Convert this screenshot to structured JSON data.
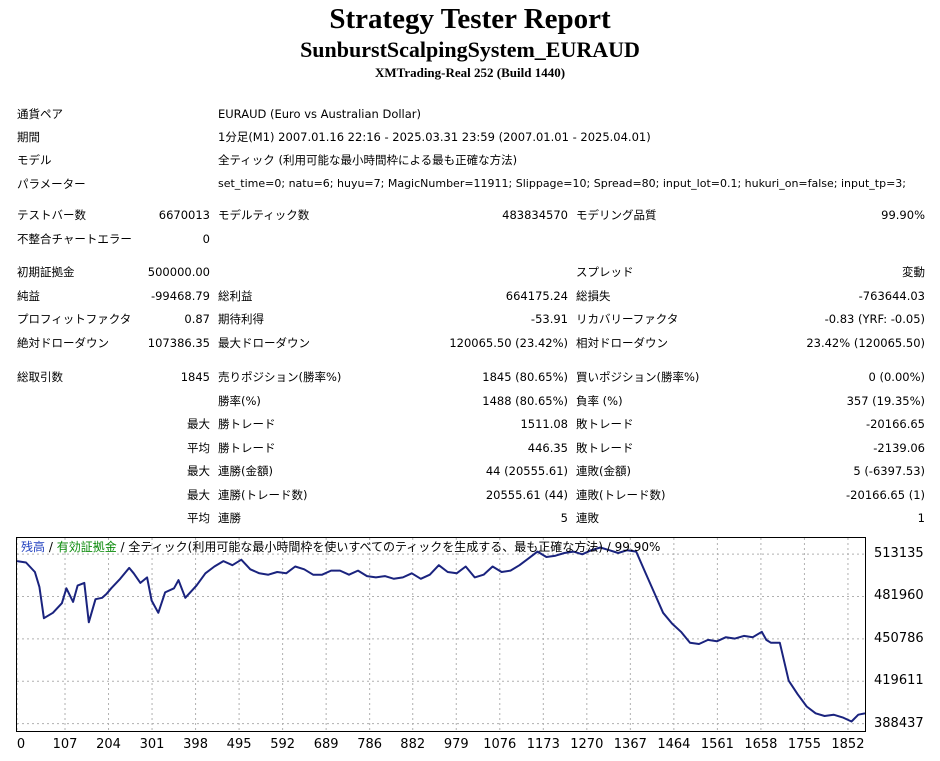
{
  "header": {
    "title": "Strategy Tester Report",
    "subtitle": "SunburstScalpingSystem_EURAUD",
    "server": "XMTrading-Real 252 (Build 1440)"
  },
  "settings": {
    "symbol_label": "通貨ペア",
    "symbol_value": "EURAUD (Euro vs Australian Dollar)",
    "period_label": "期間",
    "period_value": "1分足(M1) 2007.01.16 22:16 - 2025.03.31 23:59 (2007.01.01 - 2025.04.01)",
    "model_label": "モデル",
    "model_value": "全ティック (利用可能な最小時間枠による最も正確な方法)",
    "params_label": "パラメーター",
    "params_value": "set_time=0; natu=6; huyu=7; MagicNumber=11911; Slippage=10; Spread=80; input_lot=0.1; hukuri_on=false; input_tp=3;"
  },
  "stats": {
    "bars_label": "テストバー数",
    "bars_value": "6670013",
    "ticks_label": "モデルティック数",
    "ticks_value": "483834570",
    "quality_label": "モデリング品質",
    "quality_value": "99.90%",
    "mismatch_label": "不整合チャートエラー",
    "mismatch_value": "0",
    "deposit_label": "初期証拠金",
    "deposit_value": "500000.00",
    "spread_label": "スプレッド",
    "spread_value": "変動",
    "net_label": "純益",
    "net_value": "-99468.79",
    "gross_profit_label": "総利益",
    "gross_profit_value": "664175.24",
    "gross_loss_label": "総損失",
    "gross_loss_value": "-763644.03",
    "pf_label": "プロフィットファクタ",
    "pf_value": "0.87",
    "expected_label": "期待利得",
    "expected_value": "-53.91",
    "recovery_label": "リカバリーファクタ",
    "recovery_value": "-0.83 (YRF: -0.05)",
    "abs_dd_label": "絶対ドローダウン",
    "abs_dd_value": "107386.35",
    "max_dd_label": "最大ドローダウン",
    "max_dd_value": "120065.50 (23.42%)",
    "rel_dd_label": "相対ドローダウン",
    "rel_dd_value": "23.42% (120065.50)",
    "total_trades_label": "総取引数",
    "total_trades_value": "1845",
    "short_label": "売りポジション(勝率%)",
    "short_value": "1845 (80.65%)",
    "long_label": "買いポジション(勝率%)",
    "long_value": "0 (0.00%)",
    "winrate_label": "勝率(%)",
    "winrate_value": "1488 (80.65%)",
    "lossrate_label": "負率 (%)",
    "lossrate_value": "357 (19.35%)",
    "max_label": "最大",
    "avg_label": "平均",
    "largest_win_label": "勝トレード",
    "largest_win_value": "1511.08",
    "largest_loss_label": "敗トレード",
    "largest_loss_value": "-20166.65",
    "avg_win_label": "勝トレード",
    "avg_win_value": "446.35",
    "avg_loss_label": "敗トレード",
    "avg_loss_value": "-2139.06",
    "max_consec_win_label": "連勝(金額)",
    "max_consec_win_value": "44 (20555.61)",
    "max_consec_loss_label": "連敗(金額)",
    "max_consec_loss_value": "5 (-6397.53)",
    "max_consec_profit_label": "連勝(トレード数)",
    "max_consec_profit_value": "20555.61 (44)",
    "max_consec_lossamt_label": "連敗(トレード数)",
    "max_consec_lossamt_value": "-20166.65 (1)",
    "avg_consec_win_label": "連勝",
    "avg_consec_win_value": "5",
    "avg_consec_loss_label": "連敗",
    "avg_consec_loss_value": "1"
  },
  "chart_data": {
    "type": "line",
    "legend": {
      "balance": "残高",
      "sep1": " / ",
      "equity": "有効証拠金",
      "rest": " / 全ティック(利用可能な最小時間枠を使いすべてのティックを生成する、最も正確な方法) / 99.90%"
    },
    "x_ticks": [
      0,
      107,
      204,
      301,
      398,
      495,
      592,
      689,
      786,
      882,
      979,
      1076,
      1173,
      1270,
      1367,
      1464,
      1561,
      1658,
      1755,
      1852
    ],
    "y_ticks": [
      513135,
      481960,
      450786,
      419611,
      388437
    ],
    "xlim": [
      0,
      1890
    ],
    "ylim": [
      383000,
      525000
    ],
    "grid": true,
    "colors": {
      "line": "#1a237e",
      "balance_text": "#1f3fbf",
      "equity_text": "#0a8a0a",
      "grid": "#b0b0b0"
    },
    "series": [
      {
        "x": [
          0,
          20,
          40,
          50,
          60,
          80,
          100,
          110,
          125,
          135,
          150,
          160,
          175,
          190,
          200,
          210,
          230,
          250,
          260,
          275,
          290,
          300,
          315,
          330,
          350,
          360,
          375,
          400,
          420,
          440,
          460,
          480,
          500,
          520,
          540,
          560,
          580,
          600,
          620,
          640,
          660,
          680,
          700,
          720,
          740,
          760,
          780,
          800,
          820,
          840,
          860,
          880,
          900,
          920,
          940,
          960,
          980,
          1000,
          1020,
          1040,
          1060,
          1080,
          1100,
          1120,
          1140,
          1160,
          1180,
          1200,
          1220,
          1240,
          1260,
          1280,
          1300,
          1320,
          1340,
          1360,
          1380,
          1400,
          1420,
          1440,
          1460,
          1480,
          1500,
          1520,
          1540,
          1560,
          1580,
          1600,
          1620,
          1640,
          1660,
          1670,
          1680,
          1700,
          1720,
          1740,
          1760,
          1780,
          1800,
          1820,
          1840,
          1860,
          1875,
          1890
        ],
        "values": [
          508000,
          507000,
          500000,
          489000,
          466000,
          470000,
          477000,
          488000,
          478000,
          490000,
          492000,
          463000,
          480000,
          481000,
          484000,
          488000,
          495000,
          503000,
          499000,
          492000,
          496000,
          479000,
          470000,
          485000,
          488000,
          494000,
          481000,
          490000,
          499000,
          504000,
          508000,
          505000,
          509000,
          502000,
          499000,
          498000,
          500000,
          499000,
          504000,
          502000,
          498000,
          498000,
          501000,
          501000,
          498000,
          501000,
          497000,
          496000,
          497000,
          495000,
          496000,
          499000,
          495000,
          498000,
          505000,
          500000,
          499000,
          504000,
          496000,
          498000,
          504000,
          500000,
          501000,
          505000,
          510000,
          515000,
          511000,
          512000,
          514000,
          515000,
          513000,
          516000,
          518000,
          516000,
          514000,
          516000,
          515000,
          500000,
          485000,
          470000,
          462000,
          456000,
          448000,
          447000,
          450000,
          449000,
          452000,
          451000,
          453000,
          452000,
          456000,
          450000,
          448000,
          448000,
          420000,
          410000,
          401000,
          396000,
          394000,
          395000,
          393000,
          390000,
          395000,
          396000
        ]
      }
    ]
  }
}
